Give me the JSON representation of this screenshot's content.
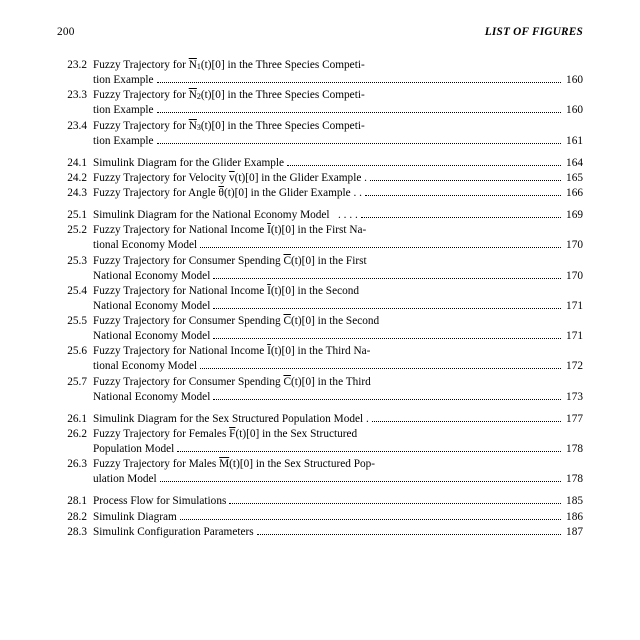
{
  "header": {
    "page_number": "200",
    "title": "LIST OF FIGURES"
  },
  "groups": [
    {
      "items": [
        {
          "num": "23.2",
          "lines": [
            "Fuzzy Trajectory for <span class='ov'>N</span><span class='sub'>1</span>(t)[0] in the Three Species Competi-",
            "tion Example"
          ],
          "page": "160"
        },
        {
          "num": "23.3",
          "lines": [
            "Fuzzy Trajectory for <span class='ov'>N</span><span class='sub'>2</span>(t)[0] in the Three Species Competi-",
            "tion Example"
          ],
          "page": "160"
        },
        {
          "num": "23.4",
          "lines": [
            "Fuzzy Trajectory for <span class='ov'>N</span><span class='sub'>3</span>(t)[0] in the Three Species Competi-",
            "tion Example"
          ],
          "page": "161"
        }
      ]
    },
    {
      "items": [
        {
          "num": "24.1",
          "lines": [
            "Simulink Diagram for the Glider Example"
          ],
          "page": "164"
        },
        {
          "num": "24.2",
          "lines": [
            "Fuzzy Trajectory for Velocity <span class='ov'>v</span>(t)[0] in the Glider Example ."
          ],
          "page": "165"
        },
        {
          "num": "24.3",
          "lines": [
            "Fuzzy Trajectory for Angle <span class='ov'>θ</span>(t)[0] in the Glider Example  . ."
          ],
          "page": "166"
        }
      ]
    },
    {
      "items": [
        {
          "num": "25.1",
          "lines": [
            "Simulink Diagram for the National Economy Model&nbsp;&nbsp;&nbsp;. . . ."
          ],
          "page": "169"
        },
        {
          "num": "25.2",
          "lines": [
            "Fuzzy Trajectory for National Income <span class='ov'>I</span>(t)[0] in the First Na-",
            "tional Economy Model"
          ],
          "page": "170"
        },
        {
          "num": "25.3",
          "lines": [
            "Fuzzy Trajectory for Consumer Spending <span class='ov'>C</span>(t)[0] in the First",
            "National Economy Model"
          ],
          "page": "170"
        },
        {
          "num": "25.4",
          "lines": [
            "Fuzzy Trajectory for National Income <span class='ov'>I</span>(t)[0] in the Second",
            "National Economy Model"
          ],
          "page": "171"
        },
        {
          "num": "25.5",
          "lines": [
            "Fuzzy Trajectory for Consumer Spending <span class='ov'>C</span>(t)[0] in the Second",
            "National Economy Model"
          ],
          "page": "171"
        },
        {
          "num": "25.6",
          "lines": [
            "Fuzzy Trajectory for National Income <span class='ov'>I</span>(t)[0] in the Third Na-",
            "tional Economy Model"
          ],
          "page": "172"
        },
        {
          "num": "25.7",
          "lines": [
            "Fuzzy Trajectory for Consumer Spending <span class='ov'>C</span>(t)[0] in the Third",
            "National Economy Model"
          ],
          "page": "173"
        }
      ]
    },
    {
      "items": [
        {
          "num": "26.1",
          "lines": [
            "Simulink Diagram for the Sex Structured Population Model ."
          ],
          "page": "177"
        },
        {
          "num": "26.2",
          "lines": [
            "Fuzzy Trajectory for Females <span class='ov'>F</span>(t)[0] in the Sex Structured",
            "Population Model"
          ],
          "page": "178"
        },
        {
          "num": "26.3",
          "lines": [
            "Fuzzy Trajectory for Males <span class='ov'>M</span>(t)[0] in the Sex Structured Pop-",
            "ulation Model"
          ],
          "page": "178"
        }
      ]
    },
    {
      "items": [
        {
          "num": "28.1",
          "lines": [
            "Process Flow for Simulations"
          ],
          "page": "185"
        },
        {
          "num": "28.2",
          "lines": [
            "Simulink Diagram"
          ],
          "page": "186"
        },
        {
          "num": "28.3",
          "lines": [
            "Simulink Configuration Parameters"
          ],
          "page": "187"
        }
      ]
    }
  ]
}
